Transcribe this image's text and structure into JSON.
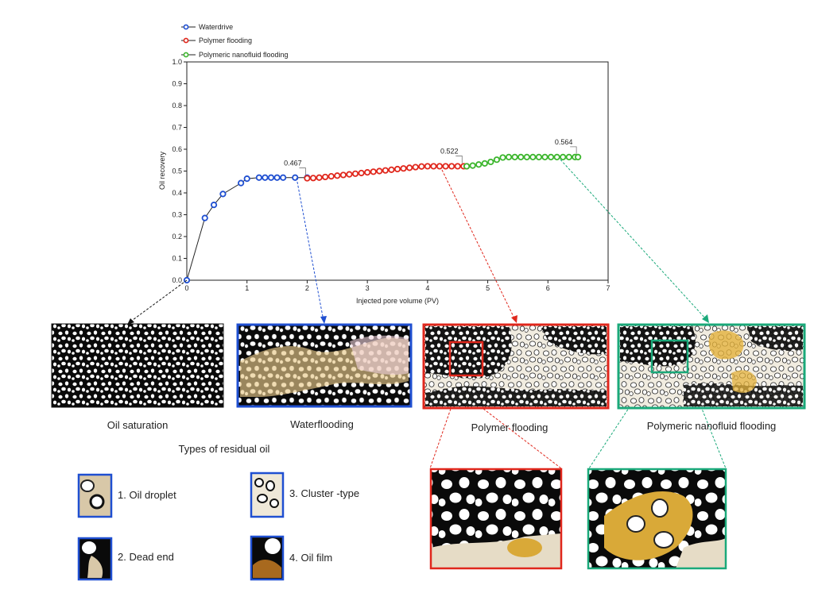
{
  "chart_data": {
    "type": "line",
    "xlabel": "Injected pore volume (PV)",
    "ylabel": "Oil recovery",
    "xlim": [
      0,
      7
    ],
    "ylim": [
      0,
      1.0
    ],
    "xticks": [
      "0",
      "1",
      "2",
      "3",
      "4",
      "5",
      "6",
      "7"
    ],
    "yticks": [
      "0.0",
      "0.1",
      "0.2",
      "0.3",
      "0.4",
      "0.5",
      "0.6",
      "0.7",
      "0.8",
      "0.9",
      "1.0"
    ],
    "legend_position": "top-left",
    "series": [
      {
        "name": "Waterdrive",
        "color": "#1f4fd1",
        "x": [
          0,
          0.3,
          0.45,
          0.6,
          0.9,
          1.0,
          1.2,
          1.3,
          1.4,
          1.5,
          1.6,
          1.8,
          2.0
        ],
        "y": [
          0.0,
          0.285,
          0.345,
          0.395,
          0.445,
          0.465,
          0.47,
          0.47,
          0.47,
          0.47,
          0.47,
          0.47,
          0.47
        ]
      },
      {
        "name": "Polymer flooding",
        "color": "#e0271c",
        "x": [
          2.0,
          2.1,
          2.2,
          2.3,
          2.4,
          2.5,
          2.6,
          2.7,
          2.8,
          2.9,
          3.0,
          3.1,
          3.2,
          3.3,
          3.4,
          3.5,
          3.6,
          3.7,
          3.8,
          3.9,
          4.0,
          4.1,
          4.2,
          4.3,
          4.4,
          4.5,
          4.6,
          4.65
        ],
        "y": [
          0.467,
          0.468,
          0.47,
          0.473,
          0.476,
          0.479,
          0.482,
          0.485,
          0.488,
          0.491,
          0.494,
          0.497,
          0.5,
          0.503,
          0.506,
          0.509,
          0.512,
          0.515,
          0.518,
          0.521,
          0.522,
          0.522,
          0.522,
          0.522,
          0.522,
          0.522,
          0.522,
          0.522
        ]
      },
      {
        "name": "Polymeric nanofluid flooding",
        "color": "#3cb62d",
        "x": [
          4.65,
          4.75,
          4.85,
          4.95,
          5.05,
          5.15,
          5.25,
          5.35,
          5.45,
          5.55,
          5.65,
          5.75,
          5.85,
          5.95,
          6.05,
          6.15,
          6.25,
          6.35,
          6.45,
          6.5
        ],
        "y": [
          0.522,
          0.525,
          0.53,
          0.535,
          0.542,
          0.552,
          0.562,
          0.564,
          0.564,
          0.564,
          0.564,
          0.564,
          0.564,
          0.564,
          0.564,
          0.564,
          0.564,
          0.564,
          0.564,
          0.564
        ]
      }
    ],
    "annotations": [
      {
        "text": "0.467",
        "x": 2.0,
        "y": 0.467
      },
      {
        "text": "0.522",
        "x": 4.6,
        "y": 0.522
      },
      {
        "text": "0.564",
        "x": 6.5,
        "y": 0.564
      }
    ]
  },
  "panels": {
    "oil_saturation": "Oil saturation",
    "waterflooding": "Waterflooding",
    "polymer_flooding": "Polymer flooding",
    "polymeric_nanofluid_flooding": "Polymeric nanofluid flooding"
  },
  "residual_oil": {
    "title": "Types of residual oil",
    "items": [
      "1. Oil droplet",
      "2. Dead end",
      "3. Cluster -type",
      "4. Oil film"
    ]
  },
  "colors": {
    "waterflooding_frame": "#1f4fd1",
    "polymer_frame": "#e0271c",
    "nanofluid_frame": "#1aa97a",
    "oil_black": "#0a0a0a",
    "grain_white": "#ffffff",
    "residual_yellow": "#e3b23c",
    "residual_tan": "#d8c8a8"
  }
}
